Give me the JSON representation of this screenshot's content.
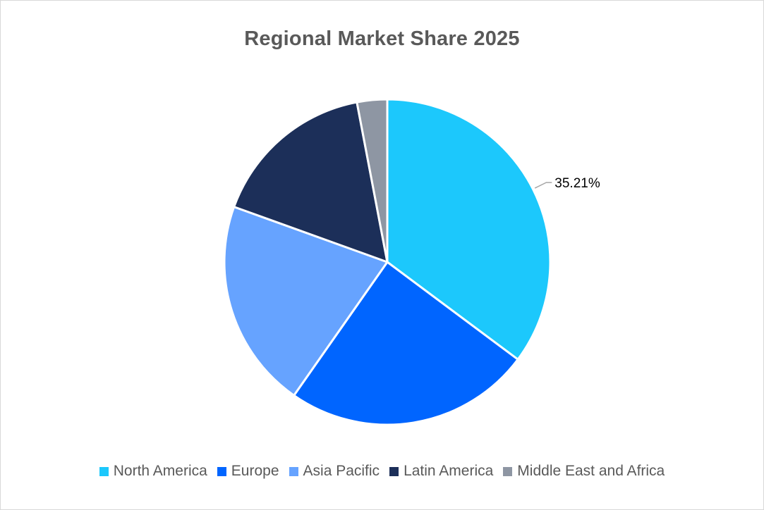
{
  "chart_data": {
    "type": "pie",
    "title": "Regional Market Share 2025",
    "categories": [
      "North America",
      "Europe",
      "Asia Pacific",
      "Latin America",
      "Middle East and Africa"
    ],
    "values": [
      35.21,
      24.5,
      20.8,
      16.5,
      2.99
    ],
    "unit": "%",
    "colors": [
      "#1CC8FC",
      "#0065FF",
      "#66A3FF",
      "#1C2F59",
      "#8E96A3"
    ],
    "data_labels": [
      {
        "category": "North America",
        "text": "35.21%"
      }
    ],
    "legend_position": "bottom",
    "start_angle_deg": 0,
    "direction": "clockwise"
  }
}
